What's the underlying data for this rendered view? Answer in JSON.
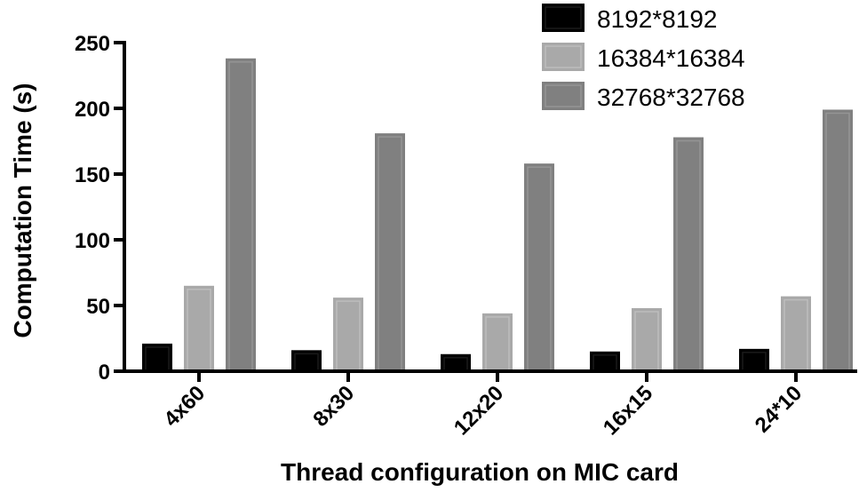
{
  "chart_data": {
    "type": "bar",
    "categories": [
      "4x60",
      "8x30",
      "12x20",
      "16x15",
      "24*10"
    ],
    "series": [
      {
        "name": "8192*8192",
        "values": [
          21,
          16,
          13,
          15,
          17
        ],
        "color": "#000000",
        "highlight": "#1a1a1a"
      },
      {
        "name": "16384*16384",
        "values": [
          65,
          56,
          44,
          48,
          57
        ],
        "color": "#a9a9a9",
        "highlight": "#bdbdbd"
      },
      {
        "name": "32768*32768",
        "values": [
          238,
          181,
          158,
          178,
          199
        ],
        "color": "#808080",
        "highlight": "#959595"
      }
    ],
    "xlabel": "Thread configuration on MIC card",
    "ylabel": "Computation Time (s)",
    "ylim": [
      0,
      250
    ],
    "yticks": [
      0,
      50,
      100,
      150,
      200,
      250
    ],
    "ytick_labels": [
      "0",
      "50",
      "100",
      "150",
      "200",
      "250"
    ],
    "grid": false,
    "legend_position": "top-right"
  }
}
